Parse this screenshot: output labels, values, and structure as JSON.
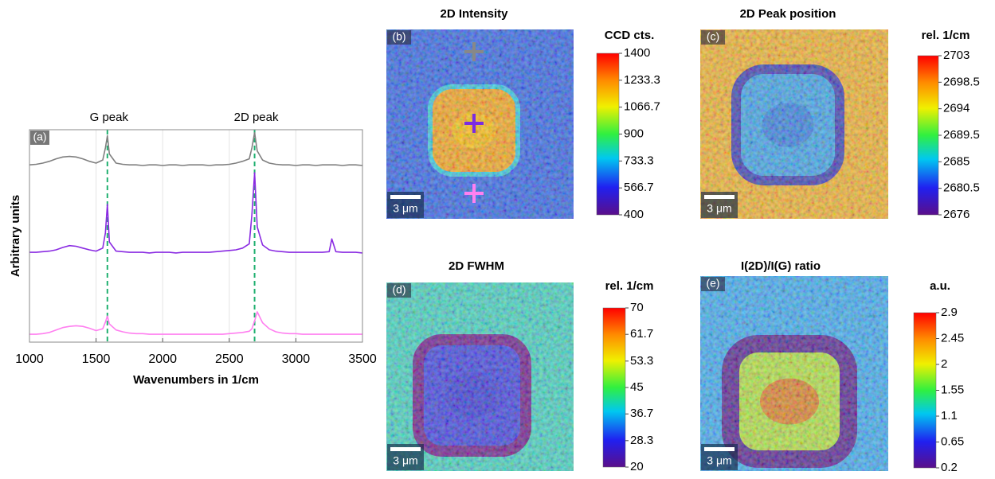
{
  "chart_data": [
    {
      "type": "line",
      "panel_label": "(a)",
      "xlabel": "Wavenumbers in 1/cm",
      "ylabel": "Arbitrary units",
      "xlim": [
        1000,
        3500
      ],
      "xticks": [
        1000,
        1500,
        2000,
        2500,
        3000,
        3500
      ],
      "ylim": [
        0,
        3.5
      ],
      "grid": true,
      "x": [
        1000,
        1050,
        1100,
        1150,
        1200,
        1250,
        1300,
        1350,
        1400,
        1450,
        1500,
        1550,
        1570,
        1585,
        1600,
        1650,
        1700,
        1750,
        1800,
        1850,
        1900,
        1950,
        2000,
        2050,
        2100,
        2150,
        2200,
        2250,
        2300,
        2350,
        2400,
        2450,
        2500,
        2550,
        2600,
        2650,
        2670,
        2690,
        2710,
        2750,
        2800,
        2850,
        2900,
        2950,
        3000,
        3050,
        3100,
        3150,
        3200,
        3250,
        3270,
        3300,
        3350,
        3400,
        3450,
        3500
      ],
      "series": [
        {
          "color": "#808080",
          "values": [
            2.92,
            2.93,
            2.95,
            2.98,
            3.02,
            3.05,
            3.06,
            3.05,
            3.02,
            2.98,
            2.95,
            3.0,
            3.2,
            3.4,
            3.1,
            2.95,
            2.93,
            2.92,
            2.92,
            2.91,
            2.92,
            2.92,
            2.91,
            2.92,
            2.92,
            2.91,
            2.92,
            2.92,
            2.92,
            2.91,
            2.92,
            2.92,
            2.93,
            2.95,
            2.98,
            3.02,
            3.2,
            3.45,
            3.15,
            3.0,
            2.95,
            2.93,
            2.92,
            2.92,
            2.91,
            2.92,
            2.92,
            2.91,
            2.92,
            2.92,
            2.92,
            2.92,
            2.91,
            2.92,
            2.92,
            2.91
          ]
        },
        {
          "color": "#8a2be2",
          "values": [
            1.48,
            1.48,
            1.49,
            1.5,
            1.52,
            1.56,
            1.59,
            1.58,
            1.55,
            1.52,
            1.5,
            1.55,
            1.8,
            2.27,
            1.65,
            1.5,
            1.49,
            1.48,
            1.48,
            1.48,
            1.47,
            1.48,
            1.48,
            1.48,
            1.47,
            1.48,
            1.48,
            1.48,
            1.48,
            1.48,
            1.49,
            1.5,
            1.51,
            1.52,
            1.55,
            1.62,
            2.1,
            2.79,
            1.9,
            1.6,
            1.52,
            1.5,
            1.49,
            1.48,
            1.48,
            1.48,
            1.48,
            1.48,
            1.48,
            1.49,
            1.7,
            1.49,
            1.48,
            1.48,
            1.48,
            1.47
          ]
        },
        {
          "color": "#ff7ff0",
          "values": [
            0.13,
            0.13,
            0.14,
            0.16,
            0.2,
            0.24,
            0.26,
            0.27,
            0.26,
            0.23,
            0.19,
            0.22,
            0.33,
            0.43,
            0.3,
            0.2,
            0.17,
            0.15,
            0.14,
            0.14,
            0.13,
            0.13,
            0.13,
            0.13,
            0.13,
            0.13,
            0.13,
            0.13,
            0.13,
            0.13,
            0.13,
            0.13,
            0.14,
            0.15,
            0.16,
            0.18,
            0.22,
            0.35,
            0.5,
            0.32,
            0.22,
            0.17,
            0.15,
            0.14,
            0.14,
            0.13,
            0.13,
            0.13,
            0.13,
            0.13,
            0.13,
            0.13,
            0.13,
            0.13,
            0.13,
            0.13
          ]
        }
      ],
      "annotations": [
        {
          "text": "G peak",
          "x": 1585
        },
        {
          "text": "2D peak",
          "x": 2690
        }
      ],
      "annotation_color": "#20b070"
    },
    {
      "type": "heatmap",
      "title": "2D Intensity",
      "panel_label": "(b)",
      "colorbar_label": "CCD cts.",
      "clim": [
        400,
        1400
      ],
      "cticks": [
        400,
        566.7,
        733.3,
        900,
        1066.7,
        1233.3,
        1400
      ],
      "scale_bar": "3 μm"
    },
    {
      "type": "heatmap",
      "title": "2D Peak position",
      "panel_label": "(c)",
      "colorbar_label": "rel. 1/cm",
      "clim": [
        2676,
        2703
      ],
      "cticks": [
        2676,
        2680.5,
        2685,
        2689.5,
        2694,
        2698.5,
        2703
      ],
      "scale_bar": "3 μm"
    },
    {
      "type": "heatmap",
      "title": "2D FWHM",
      "panel_label": "(d)",
      "colorbar_label": "rel. 1/cm",
      "clim": [
        20,
        70
      ],
      "cticks": [
        20,
        28.3,
        36.7,
        45,
        53.3,
        61.7,
        70
      ],
      "scale_bar": "3 μm"
    },
    {
      "type": "heatmap",
      "title": "I(2D)/I(G) ratio",
      "panel_label": "(e)",
      "colorbar_label": "a.u.",
      "clim": [
        0.2,
        2.9
      ],
      "cticks": [
        0.2,
        0.65,
        1.1,
        1.55,
        2,
        2.45,
        2.9
      ],
      "scale_bar": "3 μm"
    }
  ]
}
